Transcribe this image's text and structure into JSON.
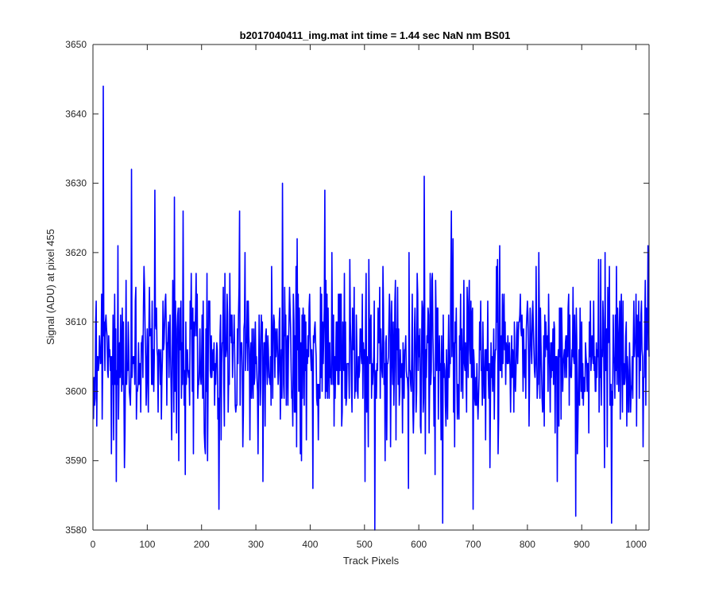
{
  "chart_data": {
    "type": "line",
    "title": "b2017040411_img.mat int time = 1.44 sec  NaN nm BS01",
    "xlabel": "Track Pixels",
    "ylabel": "Signal (ADU) at pixel 455",
    "xlim": [
      0,
      1024
    ],
    "ylim": [
      3580,
      3650
    ],
    "xticks": [
      "0",
      "100",
      "200",
      "300",
      "400",
      "500",
      "600",
      "700",
      "800",
      "900",
      "1000"
    ],
    "yticks": [
      "3580",
      "3590",
      "3600",
      "3610",
      "3620",
      "3630",
      "3640",
      "3650"
    ],
    "grid": false,
    "legend": "none",
    "series": [
      {
        "color": "#0000ff",
        "x_start": 1,
        "x_step": 1,
        "peaks": [
          {
            "x": 19,
            "y": 3644
          },
          {
            "x": 71,
            "y": 3632
          },
          {
            "x": 114,
            "y": 3629
          },
          {
            "x": 150,
            "y": 3628
          },
          {
            "x": 349,
            "y": 3630
          },
          {
            "x": 427,
            "y": 3629
          },
          {
            "x": 610,
            "y": 3631
          },
          {
            "x": 660,
            "y": 3626
          },
          {
            "x": 270,
            "y": 3626
          },
          {
            "x": 166,
            "y": 3626
          }
        ],
        "troughs": [
          {
            "x": 232,
            "y": 3583
          },
          {
            "x": 519,
            "y": 3580
          },
          {
            "x": 644,
            "y": 3581
          },
          {
            "x": 955,
            "y": 3581
          },
          {
            "x": 889,
            "y": 3582
          },
          {
            "x": 58,
            "y": 3589
          },
          {
            "x": 405,
            "y": 3586
          },
          {
            "x": 700,
            "y": 3583
          },
          {
            "x": 170,
            "y": 3588
          }
        ],
        "baseline": 3605,
        "spread": 8,
        "n_points": 1024
      }
    ]
  }
}
